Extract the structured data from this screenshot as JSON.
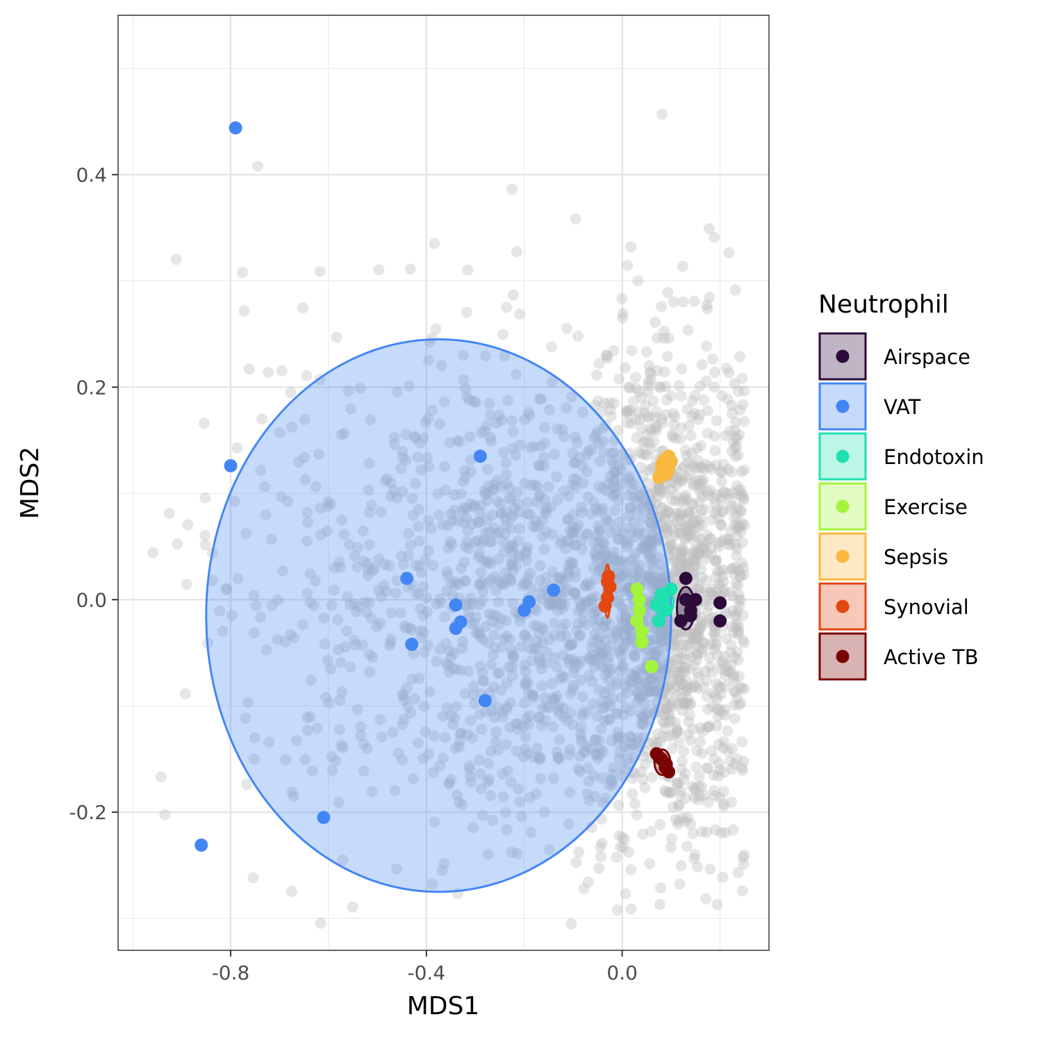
{
  "chart_data": {
    "type": "scatter",
    "xlabel": "MDS1",
    "ylabel": "MDS2",
    "xlim": [
      -1.03,
      0.3
    ],
    "ylim": [
      -0.33,
      0.55
    ],
    "x_ticks": [
      -0.8,
      -0.4,
      0.0
    ],
    "x_tick_labels": [
      "-0.8",
      "-0.4",
      "0.0"
    ],
    "y_ticks": [
      -0.2,
      0.0,
      0.2,
      0.4
    ],
    "y_tick_labels": [
      "-0.2",
      "0.0",
      "0.2",
      "0.4"
    ],
    "grid": true,
    "legend_title": "Neutrophil",
    "legend_position": "right",
    "background_points": {
      "color": "#BEBEBE",
      "description": "several thousand translucent grey points spread mostly over MDS1 -0.95 to 0.25, MDS2 -0.3 to 0.48, densest near MDS1 0.1, MDS2 0.0"
    },
    "series": [
      {
        "name": "Airspace",
        "color": "#2D0A3A",
        "points": [
          [
            0.13,
            0.0
          ],
          [
            0.14,
            -0.01
          ],
          [
            0.12,
            -0.02
          ],
          [
            0.15,
            0.0
          ],
          [
            0.13,
            0.02
          ],
          [
            0.2,
            -0.003
          ],
          [
            0.2,
            -0.02
          ],
          [
            0.14,
            -0.015
          ]
        ],
        "ellipse": {
          "cx": 0.13,
          "cy": -0.008,
          "rx": 0.018,
          "ry": 0.02
        }
      },
      {
        "name": "VAT",
        "color": "#4286F5",
        "points": [
          [
            -0.79,
            0.444
          ],
          [
            -0.8,
            0.126
          ],
          [
            -0.29,
            0.135
          ],
          [
            -0.44,
            0.02
          ],
          [
            -0.34,
            -0.005
          ],
          [
            -0.34,
            -0.027
          ],
          [
            -0.33,
            -0.021
          ],
          [
            -0.43,
            -0.042
          ],
          [
            -0.2,
            -0.01
          ],
          [
            -0.19,
            -0.002
          ],
          [
            -0.14,
            0.009
          ],
          [
            -0.28,
            -0.095
          ],
          [
            -0.61,
            -0.205
          ],
          [
            -0.86,
            -0.231
          ]
        ],
        "ellipse": {
          "cx": -0.375,
          "cy": -0.015,
          "rx": 0.475,
          "ry": 0.26
        }
      },
      {
        "name": "Endotoxin",
        "color": "#1FE0B0",
        "points": [
          [
            0.07,
            -0.005
          ],
          [
            0.08,
            0.005
          ],
          [
            0.09,
            -0.01
          ],
          [
            0.1,
            0.01
          ],
          [
            0.075,
            -0.02
          ],
          [
            0.085,
            0.0
          ]
        ],
        "ellipse": {
          "cx": 0.085,
          "cy": -0.003,
          "rx": 0.02,
          "ry": 0.012
        }
      },
      {
        "name": "Exercise",
        "color": "#A3F53A",
        "points": [
          [
            0.03,
            0.01
          ],
          [
            0.035,
            -0.01
          ],
          [
            0.04,
            -0.03
          ],
          [
            0.03,
            -0.02
          ],
          [
            0.035,
            0.0
          ],
          [
            0.04,
            -0.04
          ],
          [
            0.06,
            -0.063
          ]
        ],
        "ellipse": {
          "cx": 0.035,
          "cy": -0.015,
          "rx": 0.006,
          "ry": 0.03
        }
      },
      {
        "name": "Sepsis",
        "color": "#F9B93E",
        "points": [
          [
            0.08,
            0.12
          ],
          [
            0.085,
            0.13
          ],
          [
            0.09,
            0.125
          ],
          [
            0.095,
            0.135
          ],
          [
            0.1,
            0.13
          ],
          [
            0.075,
            0.115
          ],
          [
            0.09,
            0.118
          ]
        ],
        "ellipse": {
          "cx": 0.088,
          "cy": 0.125,
          "rx": 0.018,
          "ry": 0.012
        }
      },
      {
        "name": "Synovial",
        "color": "#E4470F",
        "points": [
          [
            -0.03,
            0.017
          ],
          [
            -0.025,
            0.012
          ],
          [
            -0.03,
            0.002
          ],
          [
            -0.035,
            -0.006
          ],
          [
            -0.028,
            0.022
          ]
        ],
        "ellipse": {
          "cx": -0.03,
          "cy": 0.008,
          "rx": 0.006,
          "ry": 0.025
        }
      },
      {
        "name": "Active TB",
        "color": "#7A0403",
        "points": [
          [
            0.07,
            -0.145
          ],
          [
            0.08,
            -0.15
          ],
          [
            0.09,
            -0.155
          ],
          [
            0.095,
            -0.162
          ],
          [
            0.075,
            -0.148
          ],
          [
            0.088,
            -0.158
          ]
        ],
        "ellipse": {
          "cx": 0.082,
          "cy": -0.153,
          "rx": 0.016,
          "ry": 0.012
        }
      }
    ]
  }
}
